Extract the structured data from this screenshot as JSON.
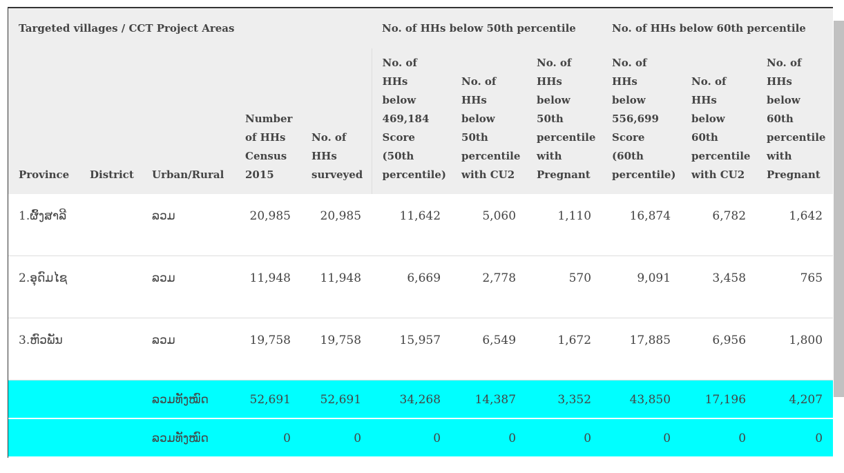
{
  "header": {
    "groups": [
      "Targeted villages / CCT Project Areas",
      "No. of HHs below 50th percentile",
      "No. of HHs below 60th percentile"
    ],
    "columns": [
      "Province",
      "District",
      "Urban/Rural",
      "Number of HHs Census 2015",
      "No. of HHs surveyed",
      "No. of HHs below 469,184 Score (50th percentile)",
      "No. of HHs below 50th percentile with CU2",
      "No. of HHs below 50th percentile with Pregnant",
      "No. of HHs below 556,699 Score (60th percentile)",
      "No. of HHs below 60th percentile with CU2",
      "No. of HHs below 60th percentile with Pregnant"
    ]
  },
  "table": {
    "rows": [
      {
        "province": "1.ຜົ້ງສາລີ",
        "urban_rural": "ລວມ",
        "values": [
          "20,985",
          "20,985",
          "11,642",
          "5,060",
          "1,110",
          "16,874",
          "6,782",
          "1,642"
        ]
      },
      {
        "province": "2.ອຸດົມໄຊ",
        "urban_rural": "ລວມ",
        "values": [
          "11,948",
          "11,948",
          "6,669",
          "2,778",
          "570",
          "9,091",
          "3,458",
          "765"
        ]
      },
      {
        "province": "3.ຫົວພັນ",
        "urban_rural": "ລວມ",
        "values": [
          "19,758",
          "19,758",
          "15,957",
          "6,549",
          "1,672",
          "17,885",
          "6,956",
          "1,800"
        ]
      },
      {
        "urban_rural": "ລວມທັງໝົດ",
        "total": true,
        "values": [
          "52,691",
          "52,691",
          "34,268",
          "14,387",
          "3,352",
          "43,850",
          "17,196",
          "4,207"
        ]
      },
      {
        "urban_rural": "ລວມທັງໝົດ",
        "total": true,
        "values": [
          "0",
          "0",
          "0",
          "0",
          "0",
          "0",
          "0",
          "0"
        ]
      }
    ]
  }
}
